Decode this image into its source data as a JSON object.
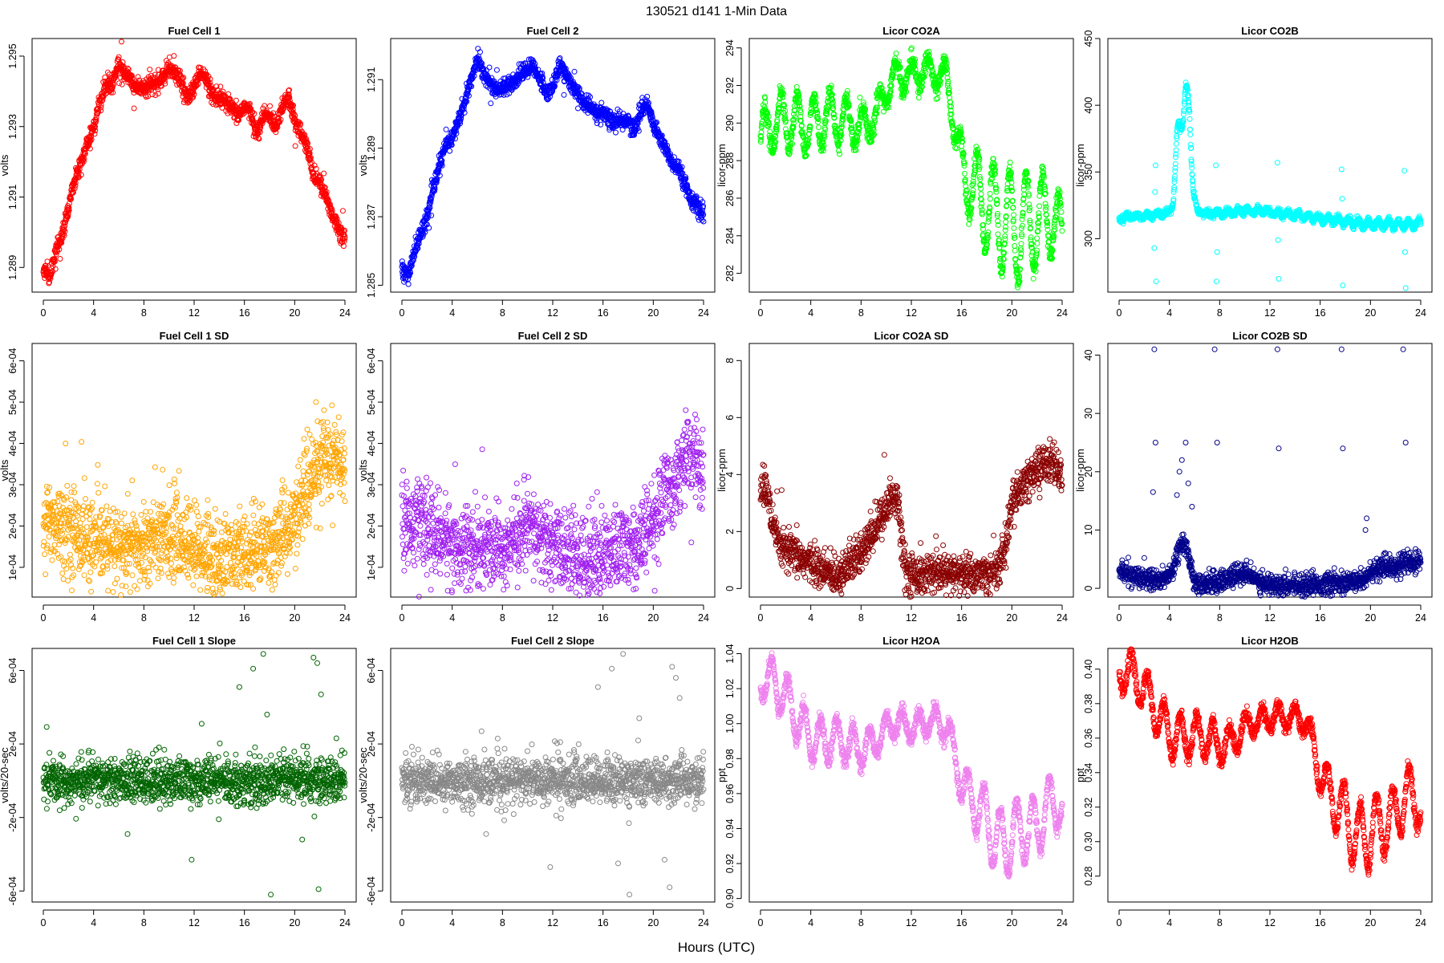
{
  "figure": {
    "title": "130521    d141    1-Min Data",
    "xlabel": "Hours (UTC)",
    "xticks": [
      "0",
      "4",
      "8",
      "12",
      "16",
      "20",
      "24"
    ]
  },
  "chart_data": [
    {
      "type": "scatter",
      "title": "Fuel Cell 1",
      "ylabel": "volts",
      "color": "#ff0000",
      "ylim": [
        1.2883,
        1.2955
      ],
      "yticks": [
        1.289,
        1.291,
        1.293,
        1.295
      ],
      "yticklabels": [
        "1.289",
        "1.291",
        "1.293",
        "1.295"
      ],
      "trend_x": [
        0,
        0.5,
        1,
        1.5,
        2,
        2.5,
        3,
        3.5,
        4,
        4.5,
        5,
        5.5,
        6,
        6.5,
        7,
        7.5,
        8,
        8.5,
        9,
        9.5,
        10,
        10.5,
        11,
        11.5,
        12,
        12.5,
        13,
        13.5,
        14,
        14.5,
        15,
        15.5,
        16,
        16.5,
        17,
        17.5,
        18,
        18.5,
        19,
        19.5,
        20,
        20.5,
        21,
        21.5,
        22,
        22.5,
        23,
        23.5,
        24
      ],
      "trend_y": [
        1.289,
        1.2887,
        1.2895,
        1.2899,
        1.2907,
        1.2915,
        1.292,
        1.2925,
        1.293,
        1.2937,
        1.2942,
        1.2942,
        1.2948,
        1.2945,
        1.2943,
        1.2941,
        1.2941,
        1.2942,
        1.2942,
        1.2944,
        1.2946,
        1.2946,
        1.2942,
        1.2938,
        1.2941,
        1.2946,
        1.2943,
        1.2938,
        1.2938,
        1.2937,
        1.2935,
        1.2933,
        1.2936,
        1.2934,
        1.2928,
        1.2933,
        1.2933,
        1.293,
        1.2936,
        1.2938,
        1.2932,
        1.2928,
        1.2924,
        1.2916,
        1.2914,
        1.291,
        1.2905,
        1.2901,
        1.2898
      ],
      "noise": 0.00012,
      "spike_prob": 0.02,
      "spike": 0.0006
    },
    {
      "type": "scatter",
      "title": "Fuel Cell 2",
      "ylabel": "volts",
      "color": "#0000ff",
      "ylim": [
        1.2848,
        1.2922
      ],
      "yticks": [
        1.285,
        1.287,
        1.289,
        1.291
      ],
      "yticklabels": [
        "1.285",
        "1.287",
        "1.289",
        "1.291"
      ],
      "trend_x": [
        0,
        0.5,
        1,
        1.5,
        2,
        2.5,
        3,
        3.5,
        4,
        4.5,
        5,
        5.5,
        6,
        6.5,
        7,
        7.5,
        8,
        8.5,
        9,
        9.5,
        10,
        10.5,
        11,
        11.5,
        12,
        12.5,
        13,
        13.5,
        14,
        14.5,
        15,
        15.5,
        16,
        16.5,
        17,
        17.5,
        18,
        18.5,
        19,
        19.5,
        20,
        20.5,
        21,
        21.5,
        22,
        22.5,
        23,
        23.5,
        24
      ],
      "trend_y": [
        1.2855,
        1.2853,
        1.286,
        1.2865,
        1.287,
        1.2878,
        1.2885,
        1.2891,
        1.2893,
        1.2898,
        1.2903,
        1.291,
        1.2916,
        1.2912,
        1.2909,
        1.2907,
        1.2908,
        1.2908,
        1.2909,
        1.2912,
        1.2913,
        1.2914,
        1.291,
        1.2906,
        1.2908,
        1.2914,
        1.2912,
        1.2908,
        1.2906,
        1.2903,
        1.2902,
        1.29,
        1.2901,
        1.2898,
        1.2898,
        1.2898,
        1.2898,
        1.2895,
        1.2901,
        1.2903,
        1.2897,
        1.2893,
        1.289,
        1.2885,
        1.2884,
        1.288,
        1.2875,
        1.2873,
        1.287
      ],
      "noise": 0.00012,
      "spike_prob": 0.02,
      "spike": 0.0006
    },
    {
      "type": "scatter",
      "title": "Licor CO2A",
      "ylabel": "licor-ppm",
      "color": "#00ff00",
      "ylim": [
        281,
        294.5
      ],
      "yticks": [
        282,
        284,
        286,
        288,
        290,
        292,
        294
      ],
      "yticklabels": [
        "282",
        "284",
        "286",
        "288",
        "290",
        "292",
        "294"
      ],
      "trend_x": [
        0,
        1,
        2,
        3,
        4,
        5,
        6,
        7,
        8,
        9,
        10,
        11,
        12,
        13,
        14,
        15,
        16,
        17,
        18,
        19,
        20,
        21,
        22,
        23,
        24
      ],
      "trend_y": [
        289.2,
        290.0,
        290.2,
        290.0,
        289.8,
        290.2,
        290.3,
        290.0,
        289.8,
        290.2,
        291.8,
        292.6,
        292.5,
        292.8,
        292.6,
        292.0,
        287.5,
        286.5,
        285.5,
        285.0,
        284.5,
        284.5,
        284.8,
        285.2,
        284.0
      ],
      "osc_amp": [
        1.3,
        1.4,
        1.5,
        1.5,
        1.5,
        1.4,
        1.3,
        1.2,
        1.0,
        0.8,
        0.8,
        0.8,
        0.8,
        0.8,
        0.8,
        1.0,
        1.5,
        2.0,
        2.5,
        2.8,
        3.0,
        2.8,
        2.5,
        2.2,
        1.5
      ],
      "osc_period": 1.3,
      "noise": 0.25,
      "spike_prob": 0,
      "spike": 0
    },
    {
      "type": "scatter",
      "title": "Licor CO2B",
      "ylabel": "licor-ppm",
      "color": "#00ffff",
      "ylim": [
        260,
        450
      ],
      "yticks": [
        300,
        350,
        400,
        450
      ],
      "yticklabels": [
        "300",
        "350",
        "400",
        "450"
      ],
      "trend_x": [
        0,
        1,
        2,
        3,
        4,
        4.3,
        4.6,
        5,
        5.3,
        5.6,
        5.9,
        6.2,
        7,
        8,
        10,
        12,
        14,
        16,
        18,
        20,
        22,
        24
      ],
      "trend_y": [
        315,
        317,
        317,
        318,
        319,
        330,
        370,
        395,
        410,
        390,
        340,
        320,
        319,
        319,
        321,
        320,
        318,
        315,
        313,
        311,
        311,
        311
      ],
      "osc_amp": [
        1.5,
        1.5,
        1.5,
        1.5,
        1.5,
        5,
        10,
        12,
        12,
        10,
        5,
        1.5,
        1.5,
        2,
        2,
        2,
        2,
        2,
        3,
        3,
        3,
        3
      ],
      "osc_period": 0.8,
      "noise": 1.2,
      "spike_prob": 0,
      "spike": 0,
      "outlier_x": [
        2.9,
        2.95,
        2.8,
        7.7,
        7.75,
        12.6,
        12.7,
        17.7,
        17.8,
        22.7,
        22.8,
        22.75,
        2.85,
        7.8,
        12.65,
        17.75
      ],
      "outlier_y": [
        355,
        268,
        293,
        355,
        268,
        357,
        270,
        352,
        265,
        351,
        263,
        290,
        335,
        290,
        299,
        330
      ]
    },
    {
      "type": "scatter",
      "title": "Fuel Cell 1 SD",
      "ylabel": "volts",
      "color": "#ffa500",
      "ylim": [
        2.8e-05,
        0.000642
      ],
      "yticks": [
        0.0001,
        0.0002,
        0.0003,
        0.0004,
        0.0005,
        0.0006
      ],
      "yticklabels": [
        "1e-04",
        "2e-04",
        "3e-04",
        "4e-04",
        "5e-04",
        "6e-04"
      ],
      "trend_x": [
        0,
        2,
        4,
        6,
        8,
        10,
        12,
        14,
        16,
        18,
        19,
        20,
        21,
        22,
        23,
        24
      ],
      "trend_y": [
        0.00022,
        0.0002,
        0.00016,
        0.00014,
        0.00015,
        0.00018,
        0.00015,
        0.00012,
        0.00013,
        0.00015,
        0.00017,
        0.00022,
        0.0003,
        0.00035,
        0.00038,
        0.00032
      ],
      "noise": 5e-05,
      "spike_prob": 0.03,
      "spike": 0.00015
    },
    {
      "type": "scatter",
      "title": "Fuel Cell 2 SD",
      "ylabel": "volts",
      "color": "#a020f0",
      "ylim": [
        2.8e-05,
        0.000642
      ],
      "yticks": [
        0.0001,
        0.0002,
        0.0003,
        0.0004,
        0.0005,
        0.0006
      ],
      "yticklabels": [
        "1e-04",
        "2e-04",
        "3e-04",
        "4e-04",
        "5e-04",
        "6e-04"
      ],
      "trend_x": [
        0,
        2,
        4,
        6,
        8,
        10,
        12,
        14,
        16,
        18,
        19,
        20,
        21,
        22,
        23,
        24
      ],
      "trend_y": [
        0.00022,
        0.00019,
        0.00016,
        0.00014,
        0.00015,
        0.00019,
        0.00015,
        0.00012,
        0.00013,
        0.00015,
        0.00016,
        0.00021,
        0.00028,
        0.00034,
        0.00037,
        0.00034
      ],
      "noise": 5e-05,
      "spike_prob": 0.03,
      "spike": 0.00015
    },
    {
      "type": "scatter",
      "title": "Licor CO2A SD",
      "ylabel": "licor-ppm",
      "color": "#8b0000",
      "ylim": [
        -0.3,
        8.6
      ],
      "yticks": [
        0,
        2,
        4,
        6,
        8
      ],
      "yticklabels": [
        "0",
        "2",
        "4",
        "6",
        "8"
      ],
      "trend_x": [
        0,
        0.5,
        1,
        1.5,
        2,
        3,
        4,
        5,
        6,
        7,
        8,
        9,
        10,
        10.5,
        11,
        11.3,
        11.6,
        12,
        14,
        16,
        18,
        19,
        19.5,
        20,
        21,
        22,
        23,
        24
      ],
      "trend_y": [
        3.5,
        3.5,
        2.0,
        1.6,
        1.3,
        1.1,
        0.9,
        0.6,
        0.5,
        0.8,
        1.2,
        2.0,
        2.8,
        3.3,
        3.0,
        1.5,
        0.6,
        0.5,
        0.5,
        0.5,
        0.5,
        0.7,
        1.5,
        3.0,
        3.6,
        4.2,
        4.5,
        4.0
      ],
      "noise": 0.35,
      "spike_prob": 0.01,
      "spike": 2.5
    },
    {
      "type": "scatter",
      "title": "Licor CO2B SD",
      "ylabel": "licor-ppm",
      "color": "#00008b",
      "ylim": [
        -1.5,
        42
      ],
      "yticks": [
        0,
        10,
        20,
        30,
        40
      ],
      "yticklabels": [
        "0",
        "10",
        "20",
        "30",
        "40"
      ],
      "trend_x": [
        0,
        1,
        2,
        3,
        4,
        4.5,
        5,
        5.5,
        6,
        7,
        8,
        9,
        10,
        11,
        12,
        14,
        16,
        18,
        19,
        20,
        21,
        22,
        23,
        24
      ],
      "trend_y": [
        3,
        2.2,
        1.8,
        1.5,
        2,
        5,
        8,
        6,
        1,
        0.8,
        1.2,
        2,
        2.5,
        1.5,
        0.6,
        0.7,
        0.7,
        0.8,
        1.2,
        2.5,
        3.5,
        4,
        4.5,
        4
      ],
      "noise": 0.9,
      "spike_prob": 0,
      "spike": 0,
      "outlier_x": [
        2.8,
        2.9,
        4.6,
        4.8,
        5.0,
        5.3,
        5.5,
        5.8,
        7.6,
        7.8,
        12.6,
        12.7,
        17.7,
        17.8,
        22.6,
        22.8,
        19.6,
        19.7,
        2.7
      ],
      "outlier_y": [
        41,
        25,
        16,
        20,
        22,
        25,
        18,
        14,
        41,
        25,
        41,
        24,
        41,
        24,
        41,
        25,
        10,
        12,
        16.5
      ]
    },
    {
      "type": "scatter",
      "title": "Fuel Cell 1 Slope",
      "ylabel": "volts/20-sec",
      "color": "#006400",
      "ylim": [
        -0.00066,
        0.00072
      ],
      "yticks": [
        -0.0006,
        -0.0002,
        0.0002,
        0.0006
      ],
      "yticklabels": [
        "-6e-04",
        "-2e-04",
        "2e-04",
        "6e-04"
      ],
      "trend_x": [
        0,
        24
      ],
      "trend_y": [
        0,
        0
      ],
      "noise": 6e-05,
      "spike_prob": 0.04,
      "spike": 0.00018,
      "outlier_x": [
        12.6,
        15.6,
        16.7,
        17.5,
        17.8,
        18.1,
        21.5,
        21.8,
        22.1,
        20.6,
        21.9,
        6.7,
        11.8
      ],
      "outlier_y": [
        0.00031,
        0.00051,
        0.00061,
        0.00069,
        0.00036,
        -0.00062,
        0.00067,
        0.00064,
        0.00047,
        -0.00032,
        -0.00059,
        -0.00029,
        -0.00043
      ]
    },
    {
      "type": "scatter",
      "title": "Fuel Cell 2 Slope",
      "ylabel": "volts/20-sec",
      "color": "#888888",
      "ylim": [
        -0.00066,
        0.00072
      ],
      "yticks": [
        -0.0006,
        -0.0002,
        0.0002,
        0.0006
      ],
      "yticklabels": [
        "-6e-04",
        "-2e-04",
        "2e-04",
        "6e-04"
      ],
      "trend_x": [
        0,
        24
      ],
      "trend_y": [
        0,
        0
      ],
      "noise": 6e-05,
      "spike_prob": 0.04,
      "spike": 0.00018,
      "outlier_x": [
        12.6,
        15.6,
        16.7,
        17.6,
        18.1,
        21.5,
        21.8,
        22.1,
        11.8,
        17.2,
        6.7,
        20.9,
        21.3
      ],
      "outlier_y": [
        0.00021,
        0.00051,
        0.00061,
        0.00069,
        -0.00062,
        0.00062,
        0.00056,
        0.00045,
        -0.00047,
        -0.00045,
        -0.00029,
        -0.00043,
        -0.00058
      ]
    },
    {
      "type": "scatter",
      "title": "Licor H2OA",
      "ylabel": "ppt",
      "color": "#ee82ee",
      "ylim": [
        0.898,
        1.043
      ],
      "yticks": [
        0.9,
        0.92,
        0.94,
        0.96,
        0.98,
        1.0,
        1.02,
        1.04
      ],
      "yticklabels": [
        "0.90",
        "0.92",
        "0.94",
        "0.96",
        "0.98",
        "1.00",
        "1.02",
        "1.04"
      ],
      "trend_x": [
        0,
        1,
        2,
        3,
        4,
        5,
        6,
        7,
        8,
        9,
        10,
        11,
        12,
        13,
        14,
        15,
        16,
        17,
        18,
        19,
        20,
        21,
        22,
        23,
        24
      ],
      "trend_y": [
        1.025,
        1.025,
        1.015,
        1.002,
        0.992,
        0.99,
        0.992,
        0.988,
        0.985,
        0.988,
        0.998,
        1.0,
        0.998,
        1.0,
        1.002,
        0.995,
        0.965,
        0.955,
        0.945,
        0.93,
        0.935,
        0.94,
        0.94,
        0.955,
        0.95
      ],
      "osc_amp": [
        0.01,
        0.012,
        0.013,
        0.013,
        0.013,
        0.013,
        0.012,
        0.011,
        0.01,
        0.009,
        0.007,
        0.007,
        0.007,
        0.007,
        0.006,
        0.007,
        0.01,
        0.015,
        0.018,
        0.02,
        0.02,
        0.018,
        0.017,
        0.015,
        0.01
      ],
      "osc_period": 1.3,
      "noise": 0.002,
      "spike_prob": 0,
      "spike": 0
    },
    {
      "type": "scatter",
      "title": "Licor H2OB",
      "ylabel": "ppt",
      "color": "#ff0000",
      "ylim": [
        0.265,
        0.412
      ],
      "yticks": [
        0.28,
        0.3,
        0.32,
        0.34,
        0.36,
        0.38,
        0.4
      ],
      "yticklabels": [
        "0.28",
        "0.30",
        "0.32",
        "0.34",
        "0.36",
        "0.38",
        "0.40"
      ],
      "trend_x": [
        0,
        1,
        2,
        3,
        4,
        5,
        6,
        7,
        8,
        9,
        10,
        11,
        12,
        13,
        14,
        15,
        16,
        17,
        18,
        19,
        20,
        21,
        22,
        23,
        24
      ],
      "trend_y": [
        0.398,
        0.398,
        0.388,
        0.375,
        0.363,
        0.36,
        0.362,
        0.36,
        0.356,
        0.358,
        0.367,
        0.37,
        0.372,
        0.372,
        0.373,
        0.368,
        0.338,
        0.325,
        0.315,
        0.3,
        0.305,
        0.31,
        0.315,
        0.33,
        0.318
      ],
      "osc_amp": [
        0.01,
        0.012,
        0.013,
        0.013,
        0.013,
        0.013,
        0.012,
        0.011,
        0.01,
        0.009,
        0.007,
        0.007,
        0.007,
        0.007,
        0.006,
        0.007,
        0.01,
        0.015,
        0.018,
        0.02,
        0.02,
        0.018,
        0.017,
        0.015,
        0.01
      ],
      "osc_period": 1.3,
      "noise": 0.002,
      "spike_prob": 0,
      "spike": 0
    }
  ]
}
